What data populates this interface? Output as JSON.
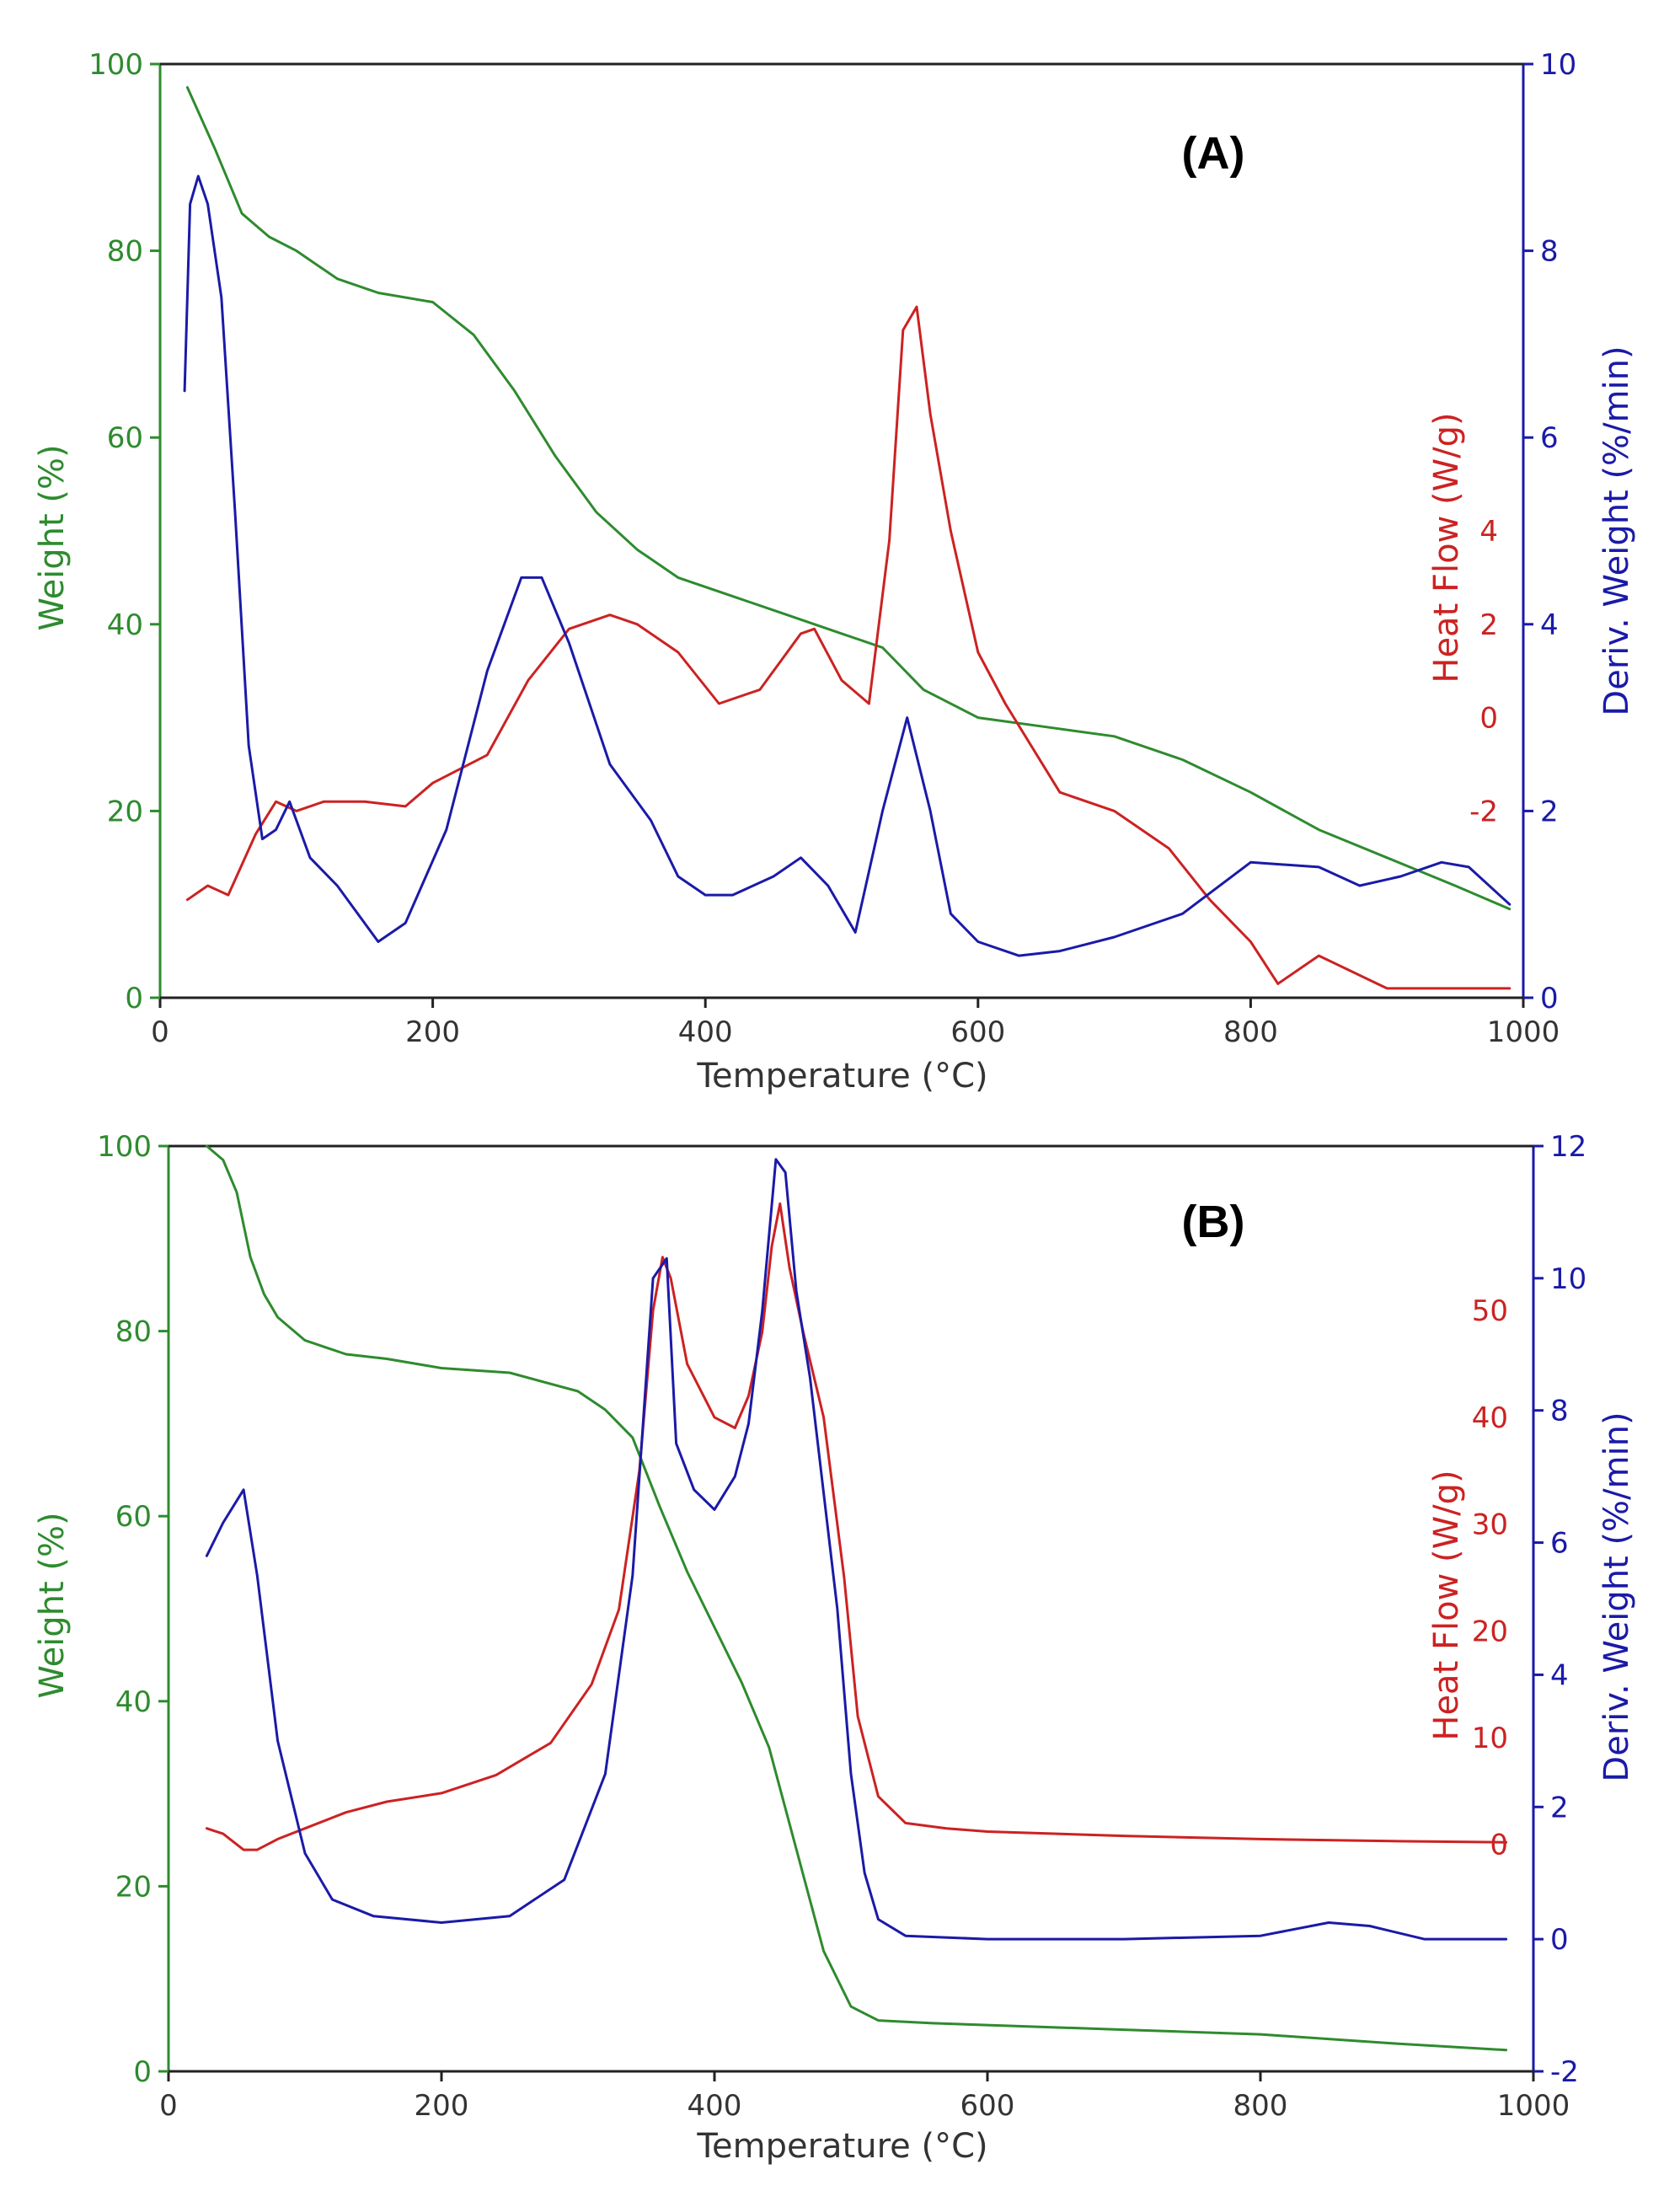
{
  "colors": {
    "weight": "#2e8b2e",
    "heat": "#cc2222",
    "deriv": "#1a1aa8",
    "axis": "#222222"
  },
  "chart_data": [
    {
      "type": "line",
      "panel_label": "(A)",
      "xlabel": "Temperature (°C)",
      "xlim": [
        0,
        1000
      ],
      "x_ticks": [
        "0",
        "200",
        "400",
        "600",
        "800",
        "1000"
      ],
      "left_axis": {
        "label": "Weight (%)",
        "lim": [
          0,
          100
        ],
        "ticks": [
          "0",
          "20",
          "40",
          "60",
          "80",
          "100"
        ]
      },
      "heat_axis": {
        "label": "Heat Flow (W/g)",
        "lim": [
          -6,
          14
        ],
        "ticks": [
          "-2",
          "0",
          "2",
          "4"
        ]
      },
      "deriv_axis": {
        "label": "Deriv. Weight (%/min)",
        "lim": [
          0,
          10
        ],
        "ticks": [
          "0",
          "2",
          "4",
          "6",
          "8",
          "10"
        ]
      },
      "series": [
        {
          "name": "Weight (%)",
          "axis": "left",
          "color_key": "weight",
          "x": [
            20,
            40,
            60,
            80,
            100,
            130,
            160,
            200,
            230,
            260,
            290,
            320,
            350,
            380,
            420,
            460,
            500,
            530,
            560,
            600,
            650,
            700,
            750,
            800,
            850,
            900,
            950,
            990
          ],
          "y": [
            97.5,
            91,
            84,
            81.5,
            80,
            77,
            75.5,
            74.5,
            71,
            65,
            58,
            52,
            48,
            45,
            43,
            41,
            39,
            37.5,
            33,
            30,
            29,
            28,
            25.5,
            22,
            18,
            15,
            12,
            9.5
          ]
        },
        {
          "name": "Heat Flow (W/g)",
          "axis": "heat",
          "color_key": "heat",
          "x": [
            20,
            35,
            50,
            70,
            85,
            100,
            120,
            150,
            180,
            200,
            240,
            270,
            300,
            330,
            350,
            380,
            410,
            440,
            470,
            480,
            500,
            520,
            535,
            545,
            555,
            565,
            580,
            600,
            620,
            660,
            700,
            740,
            770,
            800,
            820,
            850,
            900,
            950,
            990
          ],
          "y": [
            -3.9,
            -3.6,
            -3.8,
            -2.5,
            -1.8,
            -2.0,
            -1.8,
            -1.8,
            -1.9,
            -1.4,
            -0.8,
            0.8,
            1.9,
            2.2,
            2.0,
            1.4,
            0.3,
            0.6,
            1.8,
            1.9,
            0.8,
            0.3,
            3.8,
            8.3,
            8.8,
            6.5,
            4.0,
            1.4,
            0.3,
            -1.6,
            -2.0,
            -2.8,
            -3.9,
            -4.8,
            -5.7,
            -5.1,
            -5.8,
            -5.8,
            -5.8
          ]
        },
        {
          "name": "Deriv. Weight (%/min)",
          "axis": "deriv",
          "color_key": "deriv",
          "x": [
            18,
            22,
            28,
            35,
            45,
            55,
            65,
            75,
            85,
            95,
            110,
            130,
            145,
            160,
            180,
            210,
            240,
            265,
            280,
            300,
            330,
            360,
            380,
            400,
            420,
            450,
            470,
            490,
            510,
            530,
            548,
            565,
            580,
            600,
            630,
            660,
            700,
            750,
            800,
            850,
            880,
            910,
            940,
            960,
            990
          ],
          "y": [
            6.5,
            8.5,
            8.8,
            8.5,
            7.5,
            5.2,
            2.7,
            1.7,
            1.8,
            2.1,
            1.5,
            1.2,
            0.9,
            0.6,
            0.8,
            1.8,
            3.5,
            4.5,
            4.5,
            3.8,
            2.5,
            1.9,
            1.3,
            1.1,
            1.1,
            1.3,
            1.5,
            1.2,
            0.7,
            2.0,
            3.0,
            2.0,
            0.9,
            0.6,
            0.45,
            0.5,
            0.65,
            0.9,
            1.45,
            1.4,
            1.2,
            1.3,
            1.45,
            1.4,
            1.0
          ]
        }
      ]
    },
    {
      "type": "line",
      "panel_label": "(B)",
      "xlabel": "Temperature (°C)",
      "xlim": [
        0,
        1000
      ],
      "x_ticks": [
        "0",
        "200",
        "400",
        "600",
        "800",
        "1000"
      ],
      "left_axis": {
        "label": "Weight (%)",
        "lim": [
          0,
          100
        ],
        "ticks": [
          "0",
          "20",
          "40",
          "60",
          "80",
          "100"
        ]
      },
      "heat_axis": {
        "label": "Heat Flow (W/g)",
        "lim": [
          -21.25,
          65.4
        ],
        "ticks": [
          "0",
          "10",
          "20",
          "30",
          "40",
          "50"
        ]
      },
      "deriv_axis": {
        "label": "Deriv. Weight (%/min)",
        "lim": [
          -2,
          12
        ],
        "ticks": [
          "-2",
          "0",
          "2",
          "4",
          "6",
          "8",
          "10",
          "12"
        ]
      },
      "series": [
        {
          "name": "Weight (%)",
          "axis": "left",
          "color_key": "weight",
          "x": [
            28,
            40,
            50,
            60,
            70,
            80,
            100,
            130,
            160,
            200,
            250,
            300,
            320,
            340,
            360,
            380,
            400,
            420,
            440,
            460,
            480,
            500,
            520,
            560,
            600,
            700,
            800,
            900,
            980
          ],
          "y": [
            100,
            98.5,
            95,
            88,
            84,
            81.5,
            79,
            77.5,
            77,
            76,
            75.5,
            73.5,
            71.5,
            68.5,
            61,
            54,
            48,
            42,
            35,
            24,
            13,
            7,
            5.5,
            5.2,
            5,
            4.5,
            4,
            3,
            2.3
          ]
        },
        {
          "name": "Heat Flow (W/g)",
          "axis": "heat",
          "color_key": "heat",
          "x": [
            28,
            40,
            55,
            65,
            80,
            100,
            130,
            160,
            200,
            240,
            280,
            310,
            330,
            345,
            355,
            362,
            368,
            380,
            400,
            415,
            425,
            435,
            442,
            448,
            455,
            465,
            480,
            495,
            505,
            520,
            540,
            570,
            600,
            700,
            800,
            900,
            980
          ],
          "y": [
            1.5,
            1.0,
            -0.5,
            -0.5,
            0.5,
            1.5,
            3.0,
            4.0,
            4.8,
            6.5,
            9.5,
            15,
            22,
            35,
            50,
            55,
            53,
            45,
            40,
            39,
            42,
            48,
            56,
            60,
            54,
            48,
            40,
            25,
            12,
            4.5,
            2,
            1.5,
            1.2,
            0.8,
            0.5,
            0.3,
            0.2
          ]
        },
        {
          "name": "Deriv. Weight (%/min)",
          "axis": "deriv",
          "color_key": "deriv",
          "x": [
            28,
            40,
            55,
            65,
            80,
            100,
            120,
            150,
            200,
            250,
            290,
            320,
            340,
            355,
            365,
            372,
            385,
            400,
            415,
            425,
            435,
            445,
            452,
            460,
            470,
            490,
            500,
            510,
            520,
            540,
            600,
            700,
            800,
            850,
            880,
            920,
            980
          ],
          "y": [
            5.8,
            6.3,
            6.8,
            5.5,
            3.0,
            1.3,
            0.6,
            0.35,
            0.25,
            0.35,
            0.9,
            2.5,
            5.5,
            10.0,
            10.3,
            7.5,
            6.8,
            6.5,
            7.0,
            7.8,
            9.5,
            11.8,
            11.6,
            9.8,
            8.5,
            5.0,
            2.5,
            1.0,
            0.3,
            0.05,
            0.0,
            0.0,
            0.05,
            0.25,
            0.2,
            0.0,
            0.0
          ]
        }
      ]
    }
  ]
}
